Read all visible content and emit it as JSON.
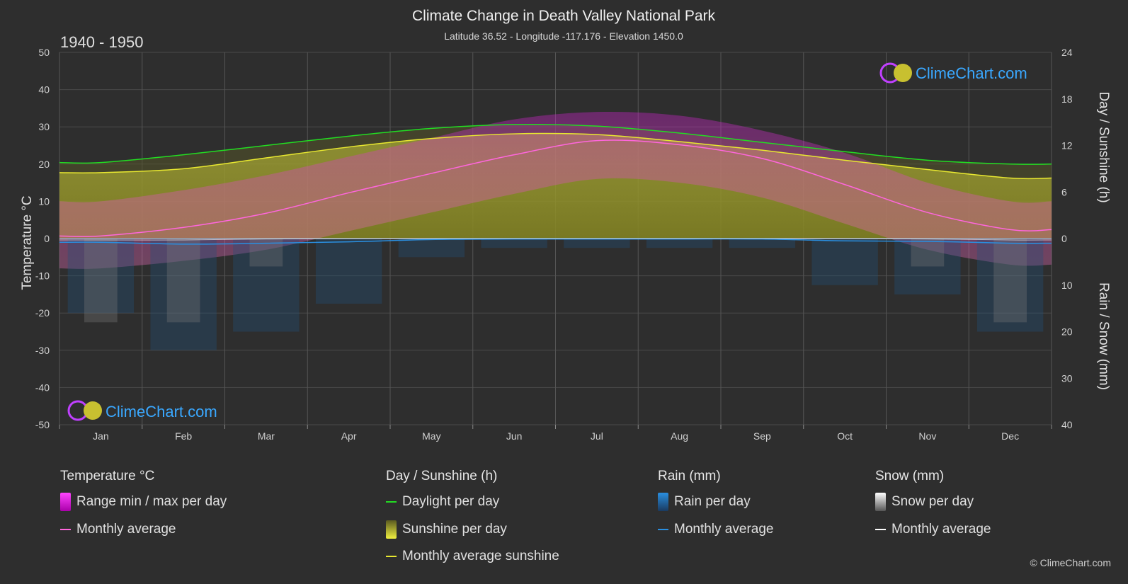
{
  "title": "Climate Change in Death Valley National Park",
  "subtitle": "Latitude 36.52 - Longitude -117.176 - Elevation 1450.0",
  "period": "1940 - 1950",
  "watermark": "ClimeChart.com",
  "copyright": "© ClimeChart.com",
  "colors": {
    "background": "#2e2e2e",
    "temp_range": "#d000d0",
    "temp_avg": "#ff66dd",
    "daylight": "#22dd22",
    "sunshine_fill": "#b8b830",
    "sunshine_avg": "#e8e830",
    "rain": "#2a8fe0",
    "snow": "#bbbbbb",
    "snow_avg": "#ffffff"
  },
  "legend": {
    "temperature": {
      "title": "Temperature °C",
      "range": "Range min / max per day",
      "avg": "Monthly average"
    },
    "sunshine": {
      "title": "Day / Sunshine (h)",
      "daylight": "Daylight per day",
      "sunshine": "Sunshine per day",
      "avg": "Monthly average sunshine"
    },
    "rain": {
      "title": "Rain (mm)",
      "per_day": "Rain per day",
      "avg": "Monthly average"
    },
    "snow": {
      "title": "Snow (mm)",
      "per_day": "Snow per day",
      "avg": "Monthly average"
    }
  },
  "chart_data": {
    "type": "line",
    "title": "Climate Change in Death Valley National Park",
    "categories": [
      "Jan",
      "Feb",
      "Mar",
      "Apr",
      "May",
      "Jun",
      "Jul",
      "Aug",
      "Sep",
      "Oct",
      "Nov",
      "Dec"
    ],
    "y_left": {
      "label": "Temperature °C",
      "range": [
        -50,
        50
      ],
      "ticks": [
        50,
        40,
        30,
        20,
        10,
        0,
        -10,
        -20,
        -30,
        -40,
        -50
      ]
    },
    "y_right_top": {
      "label": "Day / Sunshine (h)",
      "range": [
        0,
        24
      ],
      "ticks": [
        24,
        18,
        12,
        6,
        0
      ]
    },
    "y_right_bottom": {
      "label": "Rain / Snow (mm)",
      "range": [
        0,
        40
      ],
      "ticks": [
        0,
        10,
        20,
        30,
        40
      ]
    },
    "grid": true,
    "series": [
      {
        "name": "Daylight per day",
        "unit": "h",
        "values": [
          9.8,
          10.8,
          12.0,
          13.2,
          14.2,
          14.7,
          14.5,
          13.6,
          12.4,
          11.2,
          10.1,
          9.6
        ]
      },
      {
        "name": "Monthly average sunshine",
        "unit": "h",
        "values": [
          8.5,
          9.0,
          10.4,
          11.8,
          12.9,
          13.5,
          13.4,
          12.5,
          11.4,
          10.1,
          8.9,
          7.8
        ]
      },
      {
        "name": "Monthly average",
        "unit": "°C",
        "values": [
          0.7,
          3.0,
          6.8,
          12.3,
          17.5,
          22.5,
          26.3,
          25.2,
          21.5,
          14.5,
          7.0,
          2.4
        ]
      },
      {
        "name": "Range min / max per day",
        "unit": "°C",
        "min": [
          -8,
          -6,
          -3,
          2,
          7,
          12,
          16,
          15,
          11,
          4,
          -3,
          -7
        ],
        "max": [
          10,
          13,
          17,
          22,
          27,
          32,
          34,
          33,
          29,
          23,
          15,
          10
        ]
      },
      {
        "name": "Rain monthly average",
        "unit": "mm",
        "values": [
          0.8,
          1.2,
          1.0,
          0.7,
          0.2,
          0.1,
          0.1,
          0.1,
          0.1,
          0.5,
          0.6,
          1.0
        ]
      },
      {
        "name": "Snow monthly average",
        "unit": "mm",
        "values": [
          0.3,
          0.3,
          0.1,
          0.0,
          0.0,
          0.0,
          0.0,
          0.0,
          0.0,
          0.0,
          0.1,
          0.3
        ]
      }
    ]
  }
}
